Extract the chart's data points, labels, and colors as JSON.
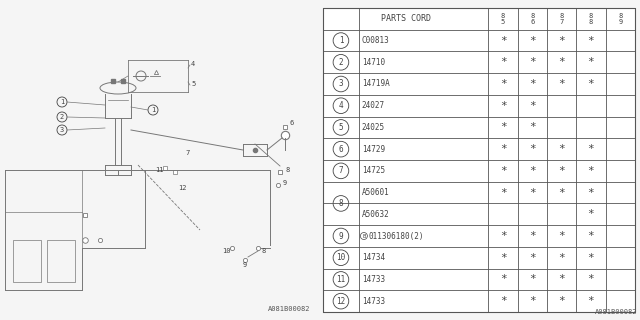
{
  "watermark": "A081B00082",
  "bg_color": "#f5f5f5",
  "table_color": "#ffffff",
  "line_color": "#777777",
  "text_color": "#333333",
  "table": {
    "rows": [
      {
        "num": "1",
        "part": "C00813",
        "85": true,
        "86": true,
        "87": true,
        "88": true,
        "89": false,
        "circle_num": true,
        "circle_b": false
      },
      {
        "num": "2",
        "part": "14710",
        "85": true,
        "86": true,
        "87": true,
        "88": true,
        "89": false,
        "circle_num": true,
        "circle_b": false
      },
      {
        "num": "3",
        "part": "14719A",
        "85": true,
        "86": true,
        "87": true,
        "88": true,
        "89": false,
        "circle_num": true,
        "circle_b": false
      },
      {
        "num": "4",
        "part": "24027",
        "85": true,
        "86": true,
        "87": false,
        "88": false,
        "89": false,
        "circle_num": true,
        "circle_b": false
      },
      {
        "num": "5",
        "part": "24025",
        "85": true,
        "86": true,
        "87": false,
        "88": false,
        "89": false,
        "circle_num": true,
        "circle_b": false
      },
      {
        "num": "6",
        "part": "14729",
        "85": true,
        "86": true,
        "87": true,
        "88": true,
        "89": false,
        "circle_num": true,
        "circle_b": false
      },
      {
        "num": "7",
        "part": "14725",
        "85": true,
        "86": true,
        "87": true,
        "88": true,
        "89": false,
        "circle_num": true,
        "circle_b": false
      },
      {
        "num": "8",
        "part": "A50601",
        "85": true,
        "86": true,
        "87": true,
        "88": true,
        "89": false,
        "circle_num": false,
        "circle_b": false,
        "span_start": true
      },
      {
        "num": "",
        "part": "A50632",
        "85": false,
        "86": false,
        "87": false,
        "88": true,
        "89": false,
        "circle_num": false,
        "circle_b": false,
        "span_end": true
      },
      {
        "num": "9",
        "part": "011306180(2)",
        "85": true,
        "86": true,
        "87": true,
        "88": true,
        "89": false,
        "circle_num": true,
        "circle_b": true
      },
      {
        "num": "10",
        "part": "14734",
        "85": true,
        "86": true,
        "87": true,
        "88": true,
        "89": false,
        "circle_num": true,
        "circle_b": false
      },
      {
        "num": "11",
        "part": "14733",
        "85": true,
        "86": true,
        "87": true,
        "88": true,
        "89": false,
        "circle_num": true,
        "circle_b": false
      },
      {
        "num": "12",
        "part": "14733",
        "85": true,
        "86": true,
        "87": true,
        "88": true,
        "89": false,
        "circle_num": true,
        "circle_b": false
      }
    ]
  }
}
